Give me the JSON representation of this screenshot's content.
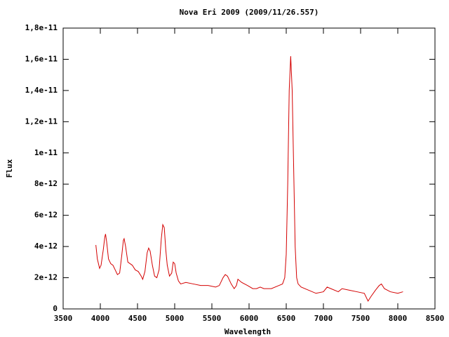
{
  "chart_data": {
    "type": "line",
    "title": "Nova Eri 2009 (2009/11/26.557)",
    "xlabel": "Wavelength",
    "ylabel": "Flux",
    "xlim": [
      3500,
      8500
    ],
    "xticks": [
      3500,
      4000,
      4500,
      5000,
      5500,
      6000,
      6500,
      7000,
      7500,
      8000,
      8500
    ],
    "ylim": [
      0,
      1.8e-11
    ],
    "yticks": [
      0,
      2e-12,
      4e-12,
      6e-12,
      8e-12,
      1e-11,
      {
        "value": 1.2e-11,
        "label": "1,2e-11"
      },
      {
        "value": 1.4e-11,
        "label": "1,4e-11"
      },
      {
        "value": 1.6e-11,
        "label": "1,6e-11"
      },
      {
        "value": 1.8e-11,
        "label": "1,8e-11"
      }
    ],
    "grid": false,
    "x": [
      3940,
      3960,
      3990,
      4010,
      4040,
      4060,
      4070,
      4085,
      4110,
      4140,
      4170,
      4200,
      4230,
      4260,
      4290,
      4310,
      4320,
      4340,
      4370,
      4400,
      4430,
      4470,
      4510,
      4550,
      4570,
      4600,
      4630,
      4650,
      4670,
      4700,
      4730,
      4760,
      4790,
      4820,
      4840,
      4860,
      4880,
      4900,
      4930,
      4960,
      4980,
      5000,
      5020,
      5050,
      5080,
      5150,
      5250,
      5350,
      5450,
      5550,
      5600,
      5650,
      5680,
      5710,
      5760,
      5800,
      5830,
      5850,
      5900,
      5980,
      6050,
      6100,
      6150,
      6200,
      6300,
      6400,
      6450,
      6480,
      6500,
      6520,
      6540,
      6560,
      6580,
      6600,
      6620,
      6640,
      6660,
      6700,
      6800,
      6900,
      7000,
      7050,
      7100,
      7200,
      7250,
      7350,
      7450,
      7550,
      7600,
      7640,
      7700,
      7750,
      7780,
      7820,
      7900,
      8000,
      8070
    ],
    "series": [
      {
        "color": "#d40000",
        "values": [
          4.1e-12,
          3.2e-12,
          2.6e-12,
          2.8e-12,
          3.8e-12,
          4.6e-12,
          4.8e-12,
          4.3e-12,
          3.2e-12,
          2.9e-12,
          2.8e-12,
          2.5e-12,
          2.2e-12,
          2.3e-12,
          3.5e-12,
          4.4e-12,
          4.5e-12,
          4e-12,
          3e-12,
          2.9e-12,
          2.8e-12,
          2.5e-12,
          2.4e-12,
          2.1e-12,
          1.9e-12,
          2.4e-12,
          3.6e-12,
          3.9e-12,
          3.7e-12,
          2.8e-12,
          2.1e-12,
          2e-12,
          2.5e-12,
          4.5e-12,
          5.4e-12,
          5.2e-12,
          3.8e-12,
          2.8e-12,
          2.1e-12,
          2.3e-12,
          3e-12,
          2.9e-12,
          2.3e-12,
          1.8e-12,
          1.6e-12,
          1.7e-12,
          1.6e-12,
          1.5e-12,
          1.5e-12,
          1.4e-12,
          1.5e-12,
          2e-12,
          2.2e-12,
          2.1e-12,
          1.6e-12,
          1.3e-12,
          1.5e-12,
          1.9e-12,
          1.7e-12,
          1.5e-12,
          1.3e-12,
          1.3e-12,
          1.4e-12,
          1.3e-12,
          1.3e-12,
          1.5e-12,
          1.6e-12,
          2e-12,
          3.5e-12,
          8e-12,
          1.4e-11,
          1.62e-11,
          1.4e-11,
          9e-12,
          4e-12,
          2e-12,
          1.6e-12,
          1.4e-12,
          1.2e-12,
          1e-12,
          1.1e-12,
          1.4e-12,
          1.3e-12,
          1.1e-12,
          1.3e-12,
          1.2e-12,
          1.1e-12,
          1e-12,
          5e-13,
          8e-13,
          1.2e-12,
          1.5e-12,
          1.6e-12,
          1.3e-12,
          1.1e-12,
          1e-12,
          1.1e-12
        ]
      }
    ]
  }
}
